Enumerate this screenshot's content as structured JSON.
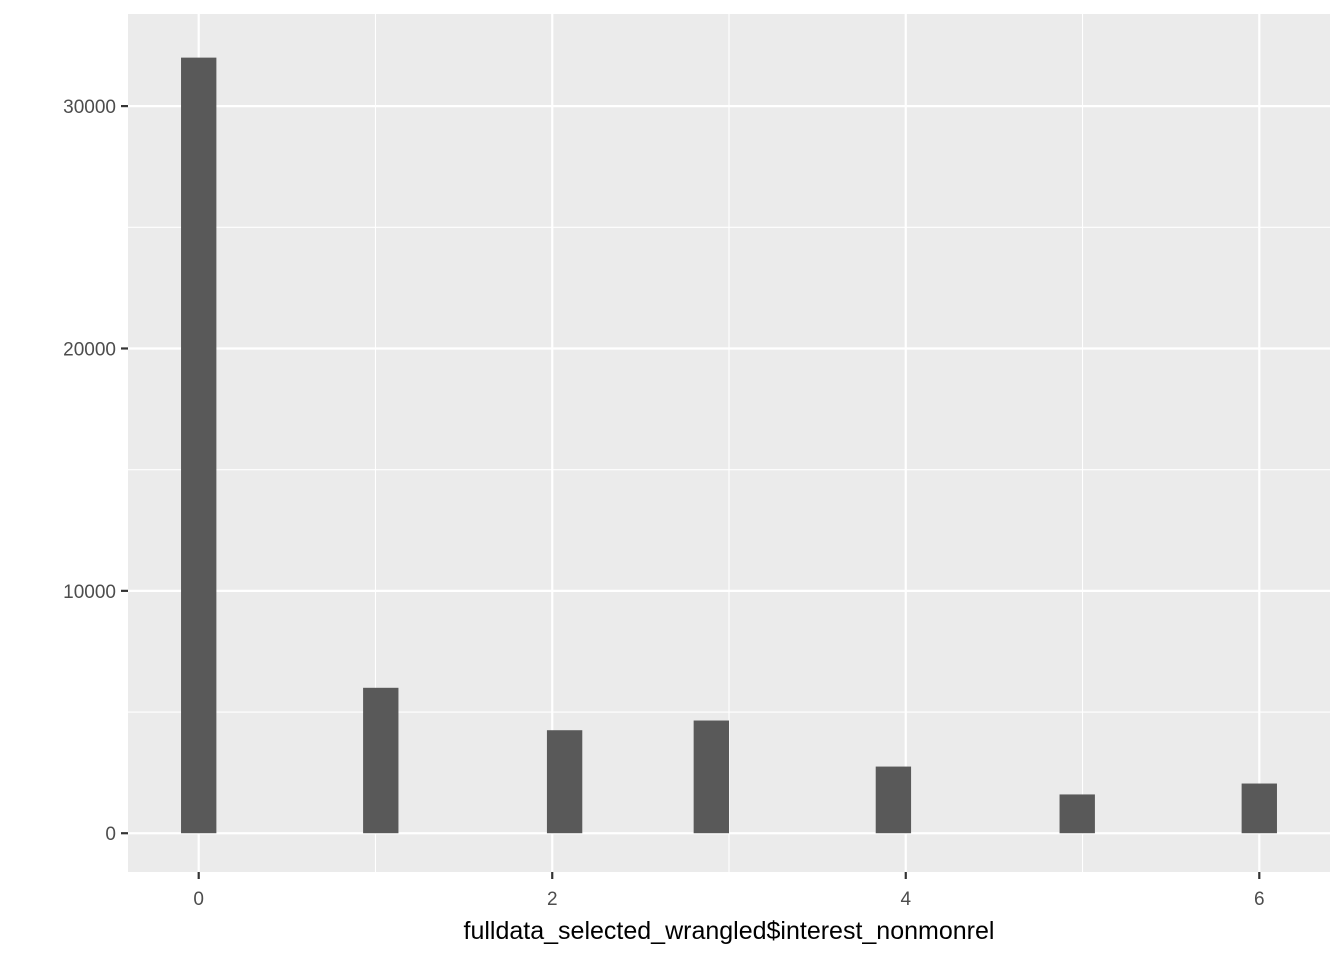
{
  "chart_data": {
    "type": "bar",
    "title": "",
    "xlabel": "fulldata_selected_wrangled$interest_nonmonrel",
    "ylabel": "",
    "x_ticks": [
      0,
      2,
      4,
      6
    ],
    "y_ticks": [
      0,
      10000,
      20000,
      30000
    ],
    "xlim": [
      -0.4,
      6.4
    ],
    "ylim": [
      -1600,
      33800
    ],
    "grid": true,
    "bars": [
      {
        "x": 0.0,
        "value": 32000
      },
      {
        "x": 1.03,
        "value": 6000
      },
      {
        "x": 2.07,
        "value": 4250
      },
      {
        "x": 2.9,
        "value": 4650
      },
      {
        "x": 3.93,
        "value": 2750
      },
      {
        "x": 4.97,
        "value": 1600
      },
      {
        "x": 6.0,
        "value": 2050
      }
    ],
    "bar_width": 0.2,
    "colors": {
      "panel": "#ebebeb",
      "grid_major": "#ffffff",
      "bar": "#595959",
      "tick": "#333333",
      "tick_text": "#4d4d4d"
    }
  }
}
